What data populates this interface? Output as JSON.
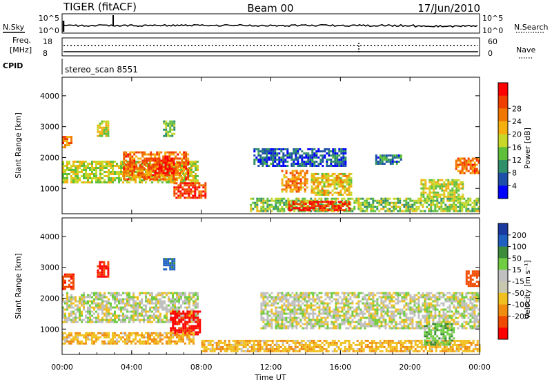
{
  "header": {
    "left": "TIGER (fitACF)",
    "center": "Beam 00",
    "right": "17/Jun/2010"
  },
  "top_panels": {
    "nsky_label": "N.Sky",
    "nsky_ticks": [
      "10^5",
      "10^0"
    ],
    "nsearch_label": "N.Search",
    "nsearch_ticks": [
      "10^5",
      "10^0"
    ],
    "freq_label_1": "Freq.",
    "freq_label_2": "[MHz]",
    "freq_ticks": [
      "18",
      "8"
    ],
    "nave_label": "Nave",
    "nave_ticks": [
      "60",
      "0"
    ],
    "cpid_label": "CPID",
    "cpid_value": "stereo_scan 8551"
  },
  "colors": {
    "power_scale": [
      "#0000ff",
      "#1e4fa8",
      "#2f8f6a",
      "#5fbf3a",
      "#c8d82a",
      "#f5b010",
      "#f07800",
      "#f04000",
      "#ff0000"
    ],
    "velocity_scale": [
      "#1a3aa0",
      "#2060c0",
      "#3c8c3c",
      "#70cc40",
      "#c0c0c0",
      "#c8c8b0",
      "#f0c020",
      "#f08c10",
      "#f04a00",
      "#ff0000"
    ]
  },
  "chart_data": [
    {
      "type": "heatmap",
      "name": "power",
      "ylabel": "Slant Range [km]",
      "yticks": [
        1000,
        2000,
        3000,
        4000
      ],
      "ylim": [
        180,
        4600
      ],
      "xlim": [
        0,
        24
      ],
      "colorbar_label": "Power [dB]",
      "colorbar_ticks": [
        "4",
        "8",
        "12",
        "16",
        "20",
        "24",
        "28"
      ],
      "colorbar_range": [
        0,
        32
      ],
      "regions": [
        {
          "x": [
            0,
            7.8
          ],
          "y": [
            1200,
            1900
          ],
          "v": 16
        },
        {
          "x": [
            3.5,
            7.2
          ],
          "y": [
            1300,
            2200
          ],
          "v": 24
        },
        {
          "x": [
            5.3,
            6.4
          ],
          "y": [
            1500,
            2000
          ],
          "v": 29
        },
        {
          "x": [
            6.4,
            8.2
          ],
          "y": [
            700,
            1200
          ],
          "v": 27
        },
        {
          "x": [
            0,
            0.5
          ],
          "y": [
            2300,
            2700
          ],
          "v": 24
        },
        {
          "x": [
            2.0,
            2.6
          ],
          "y": [
            2700,
            3200
          ],
          "v": 16
        },
        {
          "x": [
            5.8,
            6.4
          ],
          "y": [
            2700,
            3200
          ],
          "v": 12
        },
        {
          "x": [
            11.0,
            16.3
          ],
          "y": [
            1700,
            2300
          ],
          "v": 6
        },
        {
          "x": [
            12.6,
            14.1
          ],
          "y": [
            900,
            1600
          ],
          "v": 22
        },
        {
          "x": [
            14.3,
            16.6
          ],
          "y": [
            800,
            1500
          ],
          "v": 18
        },
        {
          "x": [
            10.8,
            24
          ],
          "y": [
            250,
            700
          ],
          "v": 14
        },
        {
          "x": [
            13.0,
            16.5
          ],
          "y": [
            300,
            600
          ],
          "v": 28
        },
        {
          "x": [
            20.6,
            23.0
          ],
          "y": [
            700,
            1300
          ],
          "v": 16
        },
        {
          "x": [
            22.6,
            24
          ],
          "y": [
            1500,
            2000
          ],
          "v": 24
        },
        {
          "x": [
            18.0,
            19.5
          ],
          "y": [
            1800,
            2100
          ],
          "v": 8
        }
      ]
    },
    {
      "type": "heatmap",
      "name": "velocity",
      "ylabel": "Slant Range [km]",
      "xlabel": "Time UT",
      "yticks": [
        1000,
        2000,
        3000,
        4000
      ],
      "ylim": [
        180,
        4600
      ],
      "xlim": [
        0,
        24
      ],
      "xticks": [
        "00:00",
        "04:00",
        "08:00",
        "12:00",
        "16:00",
        "20:00",
        "00:00"
      ],
      "xtick_values": [
        0,
        4,
        8,
        12,
        16,
        20,
        24
      ],
      "colorbar_label": "Velocity [m s⁻¹]",
      "colorbar_ticks": [
        "200",
        "100",
        "50",
        "15",
        "-15",
        "-50",
        "-100",
        "-200"
      ],
      "regions": [
        {
          "x": [
            0,
            7.8
          ],
          "y": [
            1200,
            2200
          ],
          "v": 0
        },
        {
          "x": [
            6.2,
            7.9
          ],
          "y": [
            800,
            1600
          ],
          "v": -220
        },
        {
          "x": [
            0,
            7.5
          ],
          "y": [
            500,
            900
          ],
          "v": -40
        },
        {
          "x": [
            0,
            0.7
          ],
          "y": [
            2300,
            2800
          ],
          "v": -180
        },
        {
          "x": [
            2.0,
            2.6
          ],
          "y": [
            2700,
            3200
          ],
          "v": -200
        },
        {
          "x": [
            11.4,
            24
          ],
          "y": [
            1000,
            2200
          ],
          "v": 0
        },
        {
          "x": [
            8.0,
            24
          ],
          "y": [
            250,
            650
          ],
          "v": -40
        },
        {
          "x": [
            20.8,
            22.5
          ],
          "y": [
            500,
            1200
          ],
          "v": 40
        },
        {
          "x": [
            23.2,
            24
          ],
          "y": [
            2400,
            2900
          ],
          "v": -150
        },
        {
          "x": [
            5.8,
            6.4
          ],
          "y": [
            2900,
            3300
          ],
          "v": 120
        }
      ]
    }
  ]
}
